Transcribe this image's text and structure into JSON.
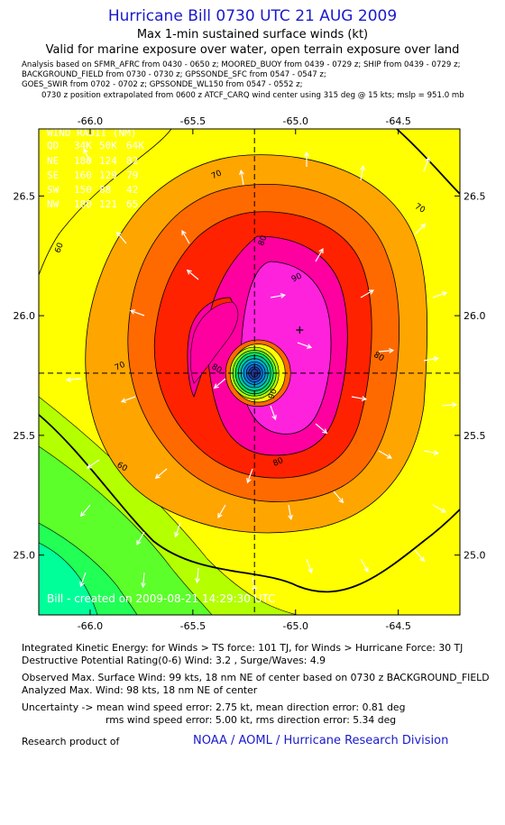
{
  "header": {
    "title": "Hurricane Bill 0730 UTC 21 AUG 2009",
    "subtitle1": "Max 1-min sustained surface winds (kt)",
    "subtitle2": "Valid for marine exposure over water, open terrain exposure over land"
  },
  "analysis_lines": [
    "Analysis based on   SFMR_AFRC from 0430 - 0650 z;  MOORED_BUOY from 0439 - 0729 z;  SHIP from 0439 - 0729 z;",
    "BACKGROUND_FIELD from 0730 - 0730 z;  GPSSONDE_SFC from 0547 - 0547 z;",
    "GOES_SWIR from 0702 - 0702 z;  GPSSONDE_WL150 from 0547 - 0552 z;",
    "0730 z position extrapolated from 0600 z ATCF_CARQ wind center using 315 deg @ 15 kts; mslp = 951.0 mb"
  ],
  "chart_data": {
    "type": "contour",
    "xlim": [
      -66.25,
      -64.2
    ],
    "ylim": [
      24.75,
      26.78
    ],
    "x_ticks": [
      "-66.0",
      "-65.5",
      "-65.0",
      "-64.5"
    ],
    "x_tick_values": [
      -66.0,
      -65.5,
      -65.0,
      -64.5
    ],
    "y_ticks": [
      "25.0",
      "25.5",
      "26.0",
      "26.5"
    ],
    "y_tick_values": [
      25.0,
      25.5,
      26.0,
      26.5
    ],
    "storm_center": {
      "lon": -65.2,
      "lat": 25.76
    },
    "max_wind_marker": {
      "lon": -64.98,
      "lat": 25.94
    },
    "contour_labels": [
      {
        "text": "70",
        "lon": -65.38,
        "lat": 26.58
      },
      {
        "text": "70",
        "lon": -64.4,
        "lat": 26.44
      },
      {
        "text": "80",
        "lon": -65.15,
        "lat": 26.31
      },
      {
        "text": "90",
        "lon": -64.99,
        "lat": 26.15
      },
      {
        "text": "80",
        "lon": -64.6,
        "lat": 25.82
      },
      {
        "text": "60",
        "lon": -66.14,
        "lat": 26.28
      },
      {
        "text": "70",
        "lon": -65.85,
        "lat": 25.78
      },
      {
        "text": "80",
        "lon": -65.39,
        "lat": 25.77
      },
      {
        "text": "90",
        "lon": -65.1,
        "lat": 25.67
      },
      {
        "text": "80",
        "lon": -65.08,
        "lat": 25.38
      },
      {
        "text": "60",
        "lon": -65.85,
        "lat": 25.36
      }
    ],
    "wind_radii": {
      "title": "WIND RADII (NM)",
      "columns": [
        "QD",
        "34K",
        "50K",
        "64K"
      ],
      "rows": [
        [
          "NE",
          "180",
          "124",
          "82"
        ],
        [
          "SE",
          "160",
          "129",
          "79"
        ],
        [
          "SW",
          "150",
          "88",
          "42"
        ],
        [
          "NW",
          "180",
          "121",
          "65"
        ]
      ]
    },
    "credit": "Bill - created on 2009-08-21 14:29:30 UTC"
  },
  "stats": {
    "ike": "Integrated Kinetic Energy:  for Winds > TS force: 101 TJ,  for Winds > Hurricane Force: 30 TJ",
    "dpr": "Destructive Potential Rating(0-6)   Wind: 3.2 , Surge/Waves: 4.9",
    "observed": "Observed Max. Surface Wind: 99 kts, 18 nm NE of center based on 0730 z BACKGROUND_FIELD",
    "analyzed": "Analyzed Max. Wind: 98 kts, 18 nm NE of center",
    "uncert1": "Uncertainty -> mean wind speed error: 2.75 kt,   mean direction error: 0.81 deg",
    "uncert2": "rms wind speed error: 5.00 kt,   rms direction error: 5.34 deg"
  },
  "footer": {
    "research": "Research product of",
    "org": "NOAA / AOML / Hurricane Research Division"
  },
  "colors": {
    "c0": "#00ff99",
    "c1": "#5cff2a",
    "c2": "#b4ff00",
    "c3": "#ffff00",
    "c4": "#ffa500",
    "c5": "#ff6a00",
    "c6": "#ff2200",
    "c7": "#ff00a0",
    "c8": "#ff22dd",
    "title": "#1a1acc"
  }
}
